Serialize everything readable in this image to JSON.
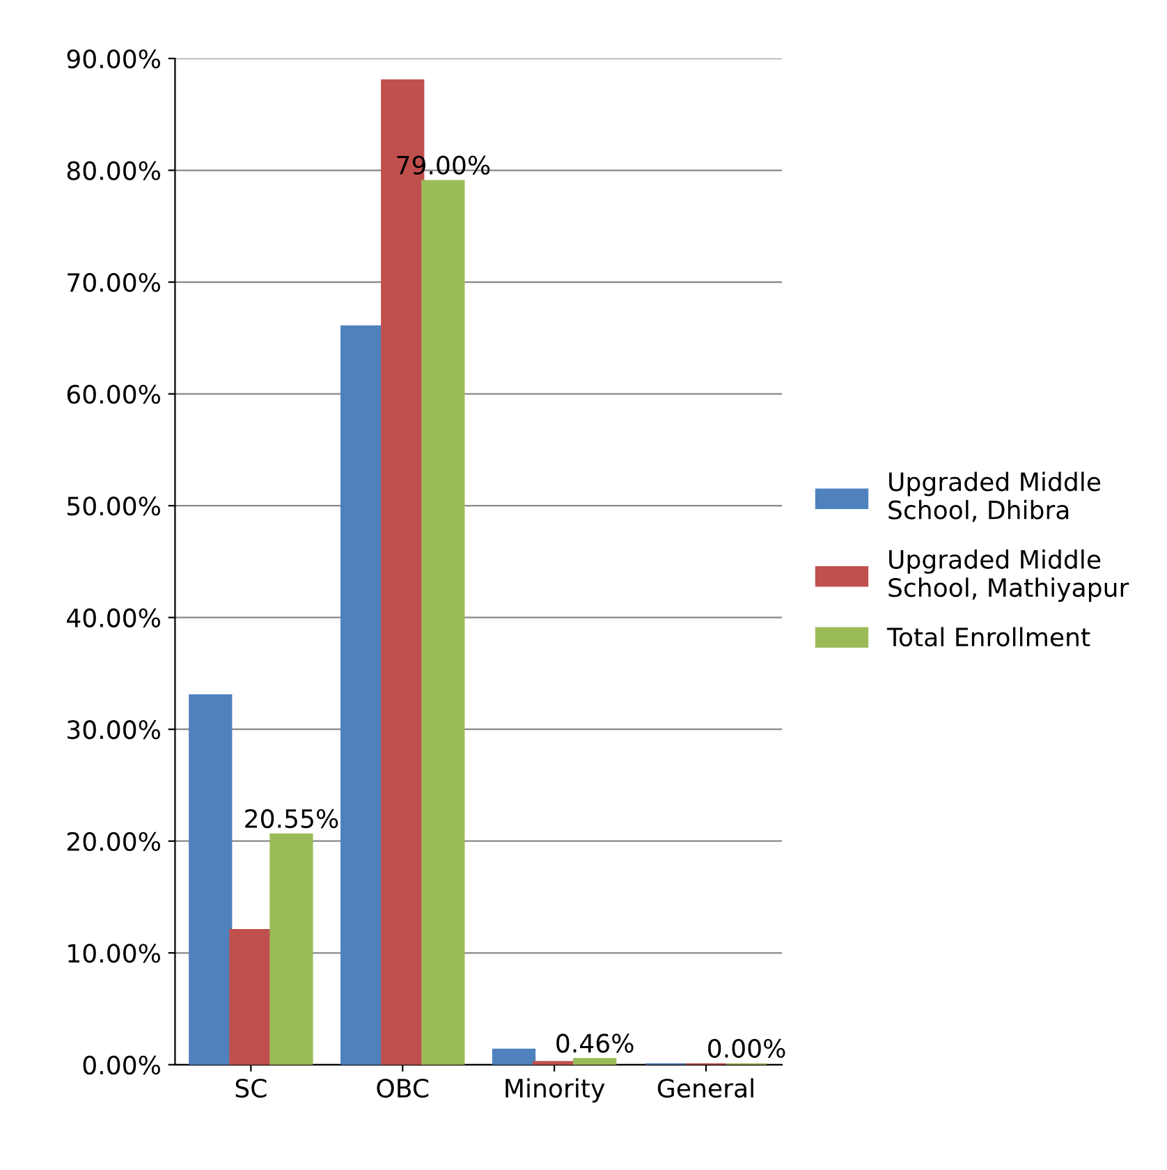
{
  "chart_data": {
    "type": "bar",
    "categories": [
      "SC",
      "OBC",
      "Minority",
      "General"
    ],
    "series": [
      {
        "name": "Upgraded Middle School, Dhibra",
        "color": "#4f81bd",
        "values": [
          33,
          66,
          1.3,
          0
        ]
      },
      {
        "name": "Upgraded Middle School, Mathiyapur",
        "color": "#c0504d",
        "values": [
          12,
          88,
          0.2,
          0
        ]
      },
      {
        "name": "Total Enrollment",
        "color": "#9bbb59",
        "values": [
          20.55,
          79.0,
          0.46,
          0.0
        ],
        "value_labels": [
          "20.55%",
          "79.00%",
          "0.46%",
          "0.00%"
        ]
      }
    ],
    "ylim": [
      0,
      90
    ],
    "yticks": [
      {
        "value": 0,
        "label": "0.00%"
      },
      {
        "value": 10,
        "label": "10.00%"
      },
      {
        "value": 20,
        "label": "20.00%"
      },
      {
        "value": 30,
        "label": "30.00%"
      },
      {
        "value": 40,
        "label": "40.00%"
      },
      {
        "value": 50,
        "label": "50.00%"
      },
      {
        "value": 60,
        "label": "60.00%"
      },
      {
        "value": 70,
        "label": "70.00%"
      },
      {
        "value": 80,
        "label": "80.00%"
      },
      {
        "value": 90,
        "label": "90.00%"
      }
    ],
    "grid": "y",
    "legend": "right"
  }
}
